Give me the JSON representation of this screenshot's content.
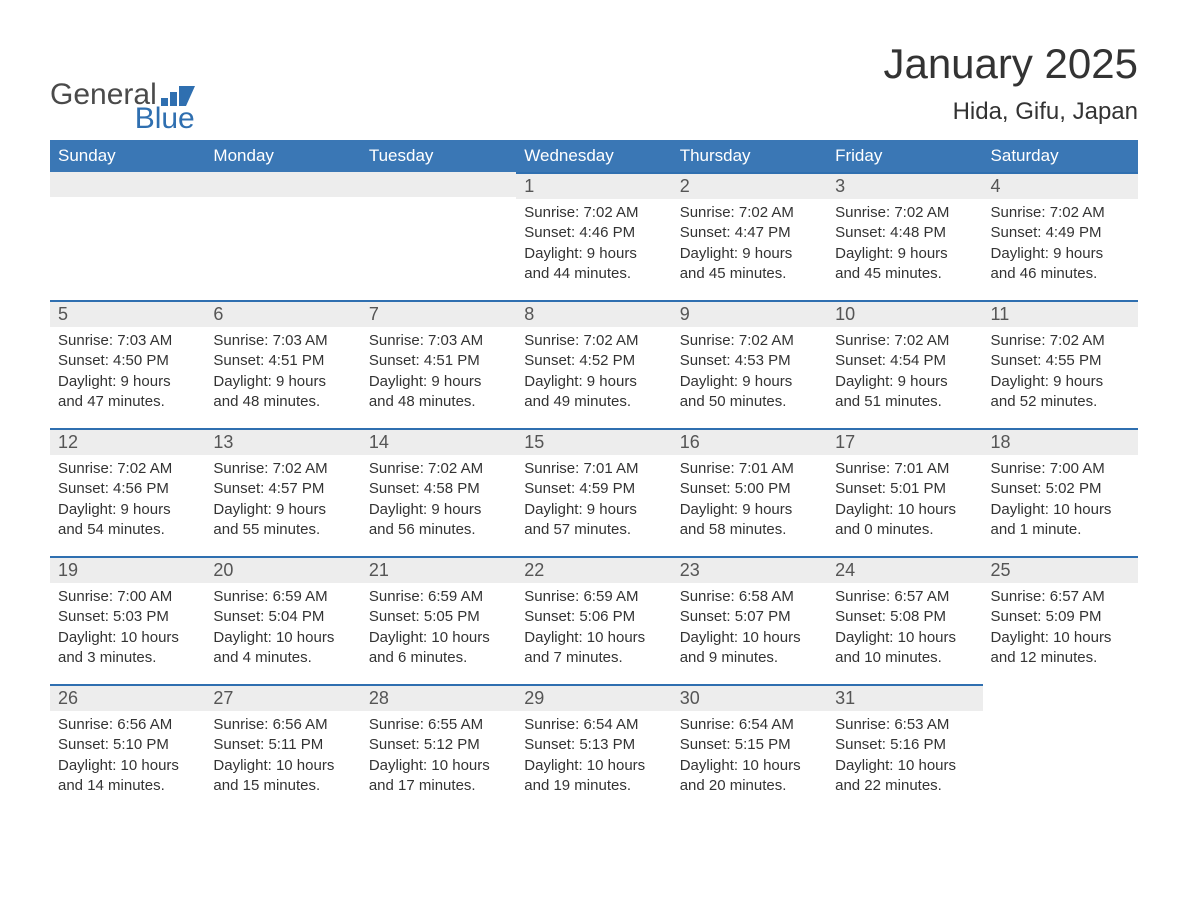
{
  "logo": {
    "text_top": "General",
    "text_bottom": "Blue",
    "color_top": "#4a4a4a",
    "color_bottom": "#2f6fb0",
    "chart_color": "#2f6fb0"
  },
  "title": "January 2025",
  "subtitle": "Hida, Gifu, Japan",
  "colors": {
    "header_bg": "#3a77b5",
    "header_text": "#ffffff",
    "row_top_border": "#2f6fb0",
    "daynum_bg": "#ededed",
    "text": "#333333",
    "background": "#ffffff"
  },
  "font_sizes": {
    "title": 42,
    "subtitle": 24,
    "th": 17,
    "daynum": 18,
    "body": 15
  },
  "weekdays": [
    "Sunday",
    "Monday",
    "Tuesday",
    "Wednesday",
    "Thursday",
    "Friday",
    "Saturday"
  ],
  "labels": {
    "sunrise": "Sunrise:",
    "sunset": "Sunset:",
    "daylight": "Daylight:"
  },
  "weeks": [
    [
      null,
      null,
      null,
      {
        "n": "1",
        "sunrise": "7:02 AM",
        "sunset": "4:46 PM",
        "daylight": "9 hours and 44 minutes."
      },
      {
        "n": "2",
        "sunrise": "7:02 AM",
        "sunset": "4:47 PM",
        "daylight": "9 hours and 45 minutes."
      },
      {
        "n": "3",
        "sunrise": "7:02 AM",
        "sunset": "4:48 PM",
        "daylight": "9 hours and 45 minutes."
      },
      {
        "n": "4",
        "sunrise": "7:02 AM",
        "sunset": "4:49 PM",
        "daylight": "9 hours and 46 minutes."
      }
    ],
    [
      {
        "n": "5",
        "sunrise": "7:03 AM",
        "sunset": "4:50 PM",
        "daylight": "9 hours and 47 minutes."
      },
      {
        "n": "6",
        "sunrise": "7:03 AM",
        "sunset": "4:51 PM",
        "daylight": "9 hours and 48 minutes."
      },
      {
        "n": "7",
        "sunrise": "7:03 AM",
        "sunset": "4:51 PM",
        "daylight": "9 hours and 48 minutes."
      },
      {
        "n": "8",
        "sunrise": "7:02 AM",
        "sunset": "4:52 PM",
        "daylight": "9 hours and 49 minutes."
      },
      {
        "n": "9",
        "sunrise": "7:02 AM",
        "sunset": "4:53 PM",
        "daylight": "9 hours and 50 minutes."
      },
      {
        "n": "10",
        "sunrise": "7:02 AM",
        "sunset": "4:54 PM",
        "daylight": "9 hours and 51 minutes."
      },
      {
        "n": "11",
        "sunrise": "7:02 AM",
        "sunset": "4:55 PM",
        "daylight": "9 hours and 52 minutes."
      }
    ],
    [
      {
        "n": "12",
        "sunrise": "7:02 AM",
        "sunset": "4:56 PM",
        "daylight": "9 hours and 54 minutes."
      },
      {
        "n": "13",
        "sunrise": "7:02 AM",
        "sunset": "4:57 PM",
        "daylight": "9 hours and 55 minutes."
      },
      {
        "n": "14",
        "sunrise": "7:02 AM",
        "sunset": "4:58 PM",
        "daylight": "9 hours and 56 minutes."
      },
      {
        "n": "15",
        "sunrise": "7:01 AM",
        "sunset": "4:59 PM",
        "daylight": "9 hours and 57 minutes."
      },
      {
        "n": "16",
        "sunrise": "7:01 AM",
        "sunset": "5:00 PM",
        "daylight": "9 hours and 58 minutes."
      },
      {
        "n": "17",
        "sunrise": "7:01 AM",
        "sunset": "5:01 PM",
        "daylight": "10 hours and 0 minutes."
      },
      {
        "n": "18",
        "sunrise": "7:00 AM",
        "sunset": "5:02 PM",
        "daylight": "10 hours and 1 minute."
      }
    ],
    [
      {
        "n": "19",
        "sunrise": "7:00 AM",
        "sunset": "5:03 PM",
        "daylight": "10 hours and 3 minutes."
      },
      {
        "n": "20",
        "sunrise": "6:59 AM",
        "sunset": "5:04 PM",
        "daylight": "10 hours and 4 minutes."
      },
      {
        "n": "21",
        "sunrise": "6:59 AM",
        "sunset": "5:05 PM",
        "daylight": "10 hours and 6 minutes."
      },
      {
        "n": "22",
        "sunrise": "6:59 AM",
        "sunset": "5:06 PM",
        "daylight": "10 hours and 7 minutes."
      },
      {
        "n": "23",
        "sunrise": "6:58 AM",
        "sunset": "5:07 PM",
        "daylight": "10 hours and 9 minutes."
      },
      {
        "n": "24",
        "sunrise": "6:57 AM",
        "sunset": "5:08 PM",
        "daylight": "10 hours and 10 minutes."
      },
      {
        "n": "25",
        "sunrise": "6:57 AM",
        "sunset": "5:09 PM",
        "daylight": "10 hours and 12 minutes."
      }
    ],
    [
      {
        "n": "26",
        "sunrise": "6:56 AM",
        "sunset": "5:10 PM",
        "daylight": "10 hours and 14 minutes."
      },
      {
        "n": "27",
        "sunrise": "6:56 AM",
        "sunset": "5:11 PM",
        "daylight": "10 hours and 15 minutes."
      },
      {
        "n": "28",
        "sunrise": "6:55 AM",
        "sunset": "5:12 PM",
        "daylight": "10 hours and 17 minutes."
      },
      {
        "n": "29",
        "sunrise": "6:54 AM",
        "sunset": "5:13 PM",
        "daylight": "10 hours and 19 minutes."
      },
      {
        "n": "30",
        "sunrise": "6:54 AM",
        "sunset": "5:15 PM",
        "daylight": "10 hours and 20 minutes."
      },
      {
        "n": "31",
        "sunrise": "6:53 AM",
        "sunset": "5:16 PM",
        "daylight": "10 hours and 22 minutes."
      },
      null
    ]
  ]
}
